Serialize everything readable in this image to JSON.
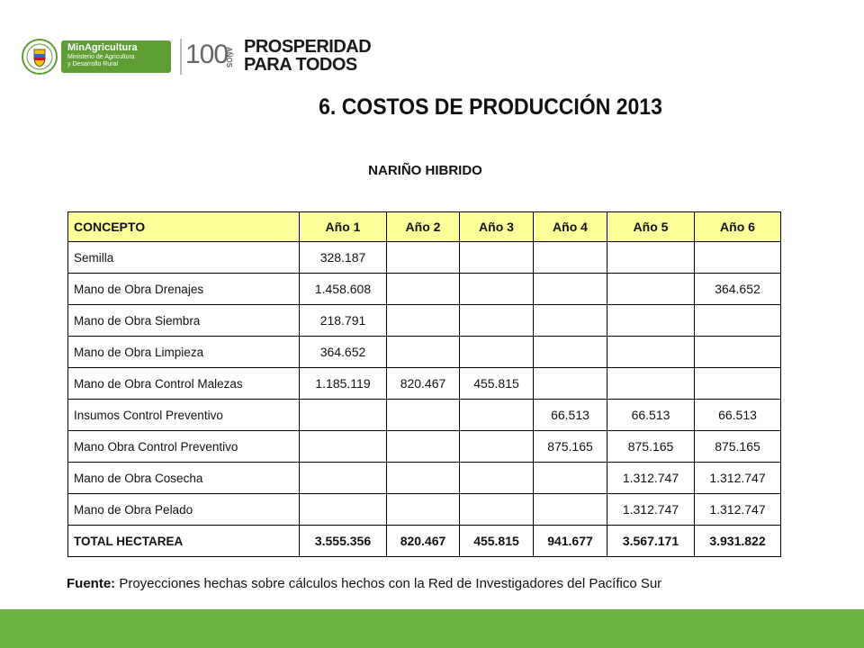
{
  "header": {
    "ministry_name": "MinAgricultura",
    "ministry_line1": "Ministerio de Agricultura",
    "ministry_line2": "y Desarrollo Rural",
    "centenary_number": "100",
    "centenary_word": "AÑOS",
    "slogan_line1": "PROSPERIDAD",
    "slogan_line2": "PARA TODOS"
  },
  "title": "6. COSTOS DE PRODUCCIÓN 2013",
  "subtitle": "NARIÑO HIBRIDO",
  "table": {
    "headers": [
      "CONCEPTO",
      "Año 1",
      "Año 2",
      "Año 3",
      "Año 4",
      "Año 5",
      "Año 6"
    ],
    "rows": [
      {
        "concept": "Semilla",
        "values": [
          "328.187",
          "",
          "",
          "",
          "",
          ""
        ]
      },
      {
        "concept": "Mano de Obra Drenajes",
        "values": [
          "1.458.608",
          "",
          "",
          "",
          "",
          "364.652"
        ]
      },
      {
        "concept": "Mano de Obra Siembra",
        "values": [
          "218.791",
          "",
          "",
          "",
          "",
          ""
        ]
      },
      {
        "concept": "Mano de Obra Limpieza",
        "values": [
          "364.652",
          "",
          "",
          "",
          "",
          ""
        ]
      },
      {
        "concept": "Mano de Obra Control Malezas",
        "values": [
          "1.185.119",
          "820.467",
          "455.815",
          "",
          "",
          ""
        ]
      },
      {
        "concept": "Insumos Control Preventivo",
        "values": [
          "",
          "",
          "",
          "66.513",
          "66.513",
          "66.513"
        ]
      },
      {
        "concept": "Mano Obra Control Preventivo",
        "values": [
          "",
          "",
          "",
          "875.165",
          "875.165",
          "875.165"
        ]
      },
      {
        "concept": "Mano de Obra Cosecha",
        "values": [
          "",
          "",
          "",
          "",
          "1.312.747",
          "1.312.747"
        ]
      },
      {
        "concept": "Mano de Obra Pelado",
        "values": [
          "",
          "",
          "",
          "",
          "1.312.747",
          "1.312.747"
        ]
      },
      {
        "concept": "TOTAL HECTAREA",
        "values": [
          "3.555.356",
          "820.467",
          "455.815",
          "941.677",
          "3.567.171",
          "3.931.822"
        ]
      }
    ]
  },
  "source": {
    "label": "Fuente:",
    "text": " Proyecciones hechas sobre cálculos hechos con la Red de Investigadores del Pacífico Sur"
  },
  "colors": {
    "header_fill": "#ffff99",
    "brand_green": "#6cb33f",
    "ministry_green": "#5f9e35"
  }
}
